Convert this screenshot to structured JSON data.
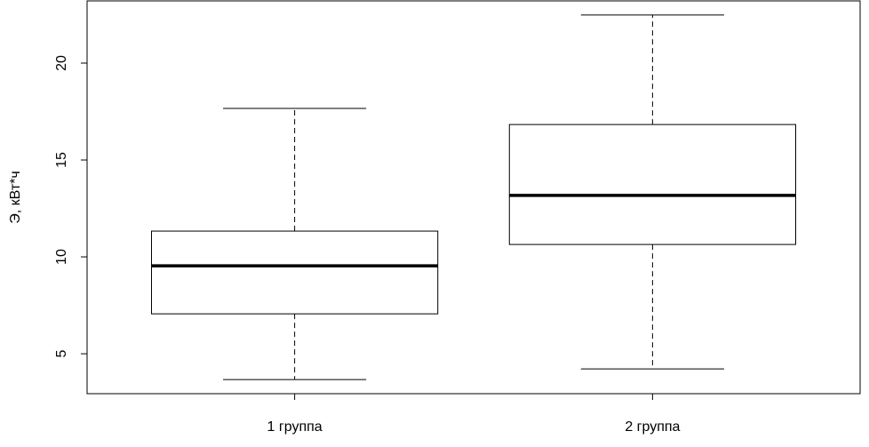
{
  "chart_data": {
    "type": "boxplot",
    "y_label": "Э, кВт*ч",
    "categories": [
      "1 группа",
      "2 группа"
    ],
    "whisker_low": [
      3.67,
      4.22
    ],
    "q1": [
      7.06,
      10.64
    ],
    "median": [
      9.54,
      13.17
    ],
    "q3": [
      11.33,
      16.83
    ],
    "whisker_high": [
      17.66,
      22.48
    ],
    "ylim": [
      2.94,
      23.21
    ],
    "yticks": [
      5,
      10,
      15,
      20
    ],
    "color": "#000000"
  }
}
